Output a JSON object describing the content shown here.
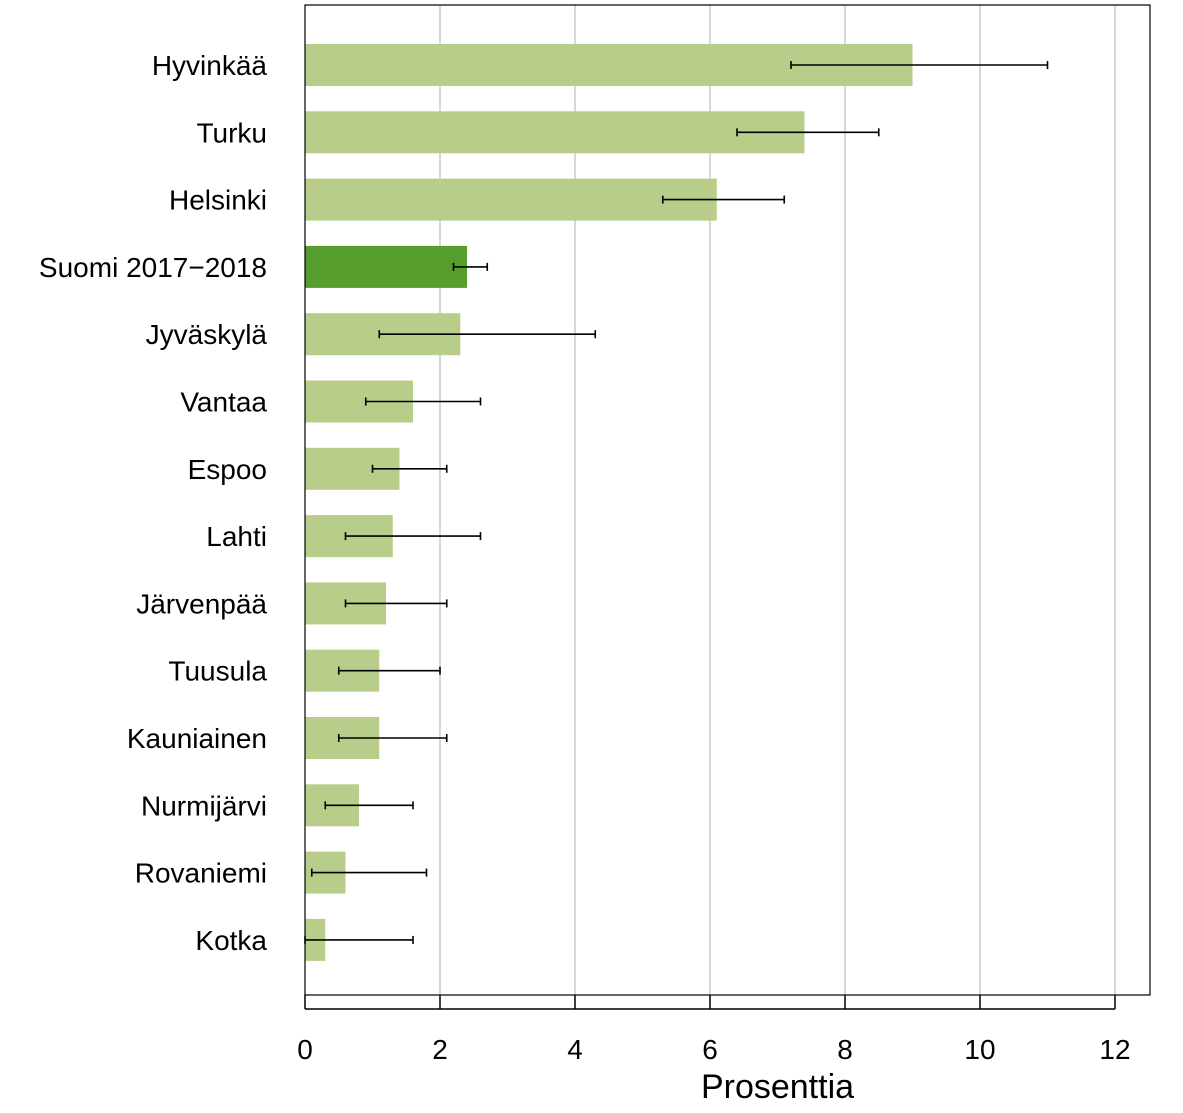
{
  "chart_data": {
    "type": "bar",
    "orientation": "horizontal",
    "title": "",
    "xlabel": "Prosenttia",
    "ylabel": "",
    "xlim": [
      0,
      13
    ],
    "x_ticks": [
      0,
      2,
      4,
      6,
      8,
      10,
      12
    ],
    "grid": "vertical",
    "legend": "none",
    "colors": {
      "bar": "#b8cd8a",
      "highlight": "#559e2e",
      "grid": "#cccccc",
      "error_bar": "#000000"
    },
    "categories": [
      "Hyvinkää",
      "Turku",
      "Helsinki",
      "Suomi 2017−2018",
      "Jyväskylä",
      "Vantaa",
      "Espoo",
      "Lahti",
      "Järvenpää",
      "Tuusula",
      "Kauniainen",
      "Nurmijärvi",
      "Rovaniemi",
      "Kotka"
    ],
    "values": [
      9.0,
      7.4,
      6.1,
      2.4,
      2.3,
      1.6,
      1.4,
      1.3,
      1.2,
      1.1,
      1.1,
      0.8,
      0.6,
      0.3
    ],
    "ci_low": [
      7.2,
      6.4,
      5.3,
      2.2,
      1.1,
      0.9,
      1.0,
      0.6,
      0.6,
      0.5,
      0.5,
      0.3,
      0.1,
      0.0
    ],
    "ci_high": [
      11.0,
      8.5,
      7.1,
      2.7,
      4.3,
      2.6,
      2.1,
      2.6,
      2.1,
      2.0,
      2.1,
      1.6,
      1.8,
      1.6
    ],
    "highlight_category": "Suomi 2017−2018"
  }
}
